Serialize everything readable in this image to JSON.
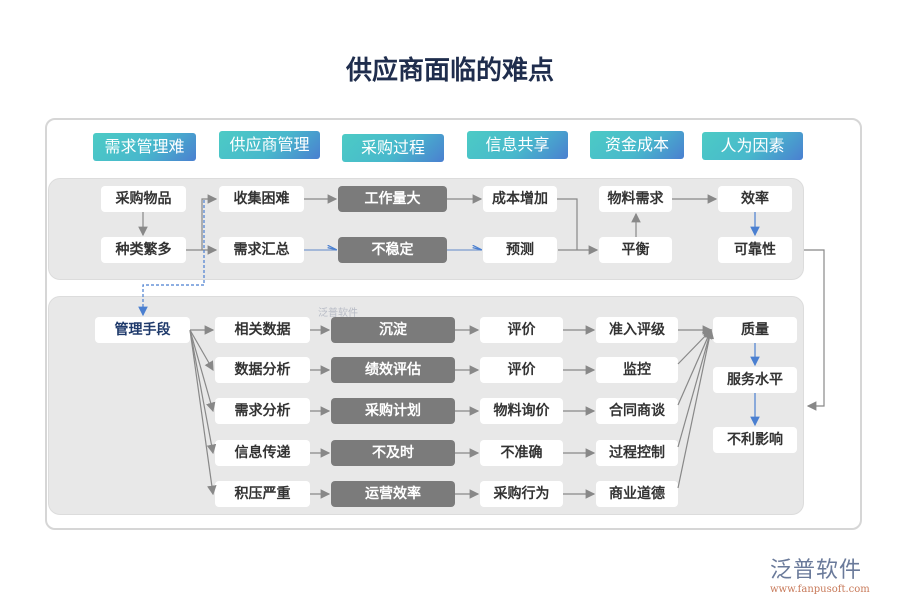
{
  "title": "供应商面临的难点",
  "headers": [
    "需求管理难",
    "供应商管理",
    "采购过程",
    "信息共享",
    "资金成本",
    "人为因素"
  ],
  "top": {
    "row1": [
      "采购物品",
      "收集困难",
      "工作量大",
      "成本增加",
      "物料需求",
      "效率"
    ],
    "row2": [
      "种类繁多",
      "需求汇总",
      "不稳定",
      "预测",
      "平衡",
      "可靠性"
    ]
  },
  "bottom": {
    "source": "管理手段",
    "rows": [
      [
        "相关数据",
        "沉淀",
        "评价",
        "准入评级"
      ],
      [
        "数据分析",
        "绩效评估",
        "评价",
        "监控"
      ],
      [
        "需求分析",
        "采购计划",
        "物料询价",
        "合同商谈"
      ],
      [
        "信息传递",
        "不及时",
        "不准确",
        "过程控制"
      ],
      [
        "积压严重",
        "运营效率",
        "采购行为",
        "商业道德"
      ]
    ],
    "outcomes": [
      "质量",
      "服务水平",
      "不利影响"
    ]
  },
  "watermark": "泛普软件",
  "logo": {
    "name": "泛普软件",
    "url": "www.fanpusoft.com"
  },
  "colors": {
    "header_start": "#4ccbc5",
    "header_end": "#4a7fd0",
    "dark_box": "#7b7b7b",
    "panel": "#e8e8e8",
    "arrow": "#888888",
    "blue_arrow": "#4a7fd0"
  }
}
